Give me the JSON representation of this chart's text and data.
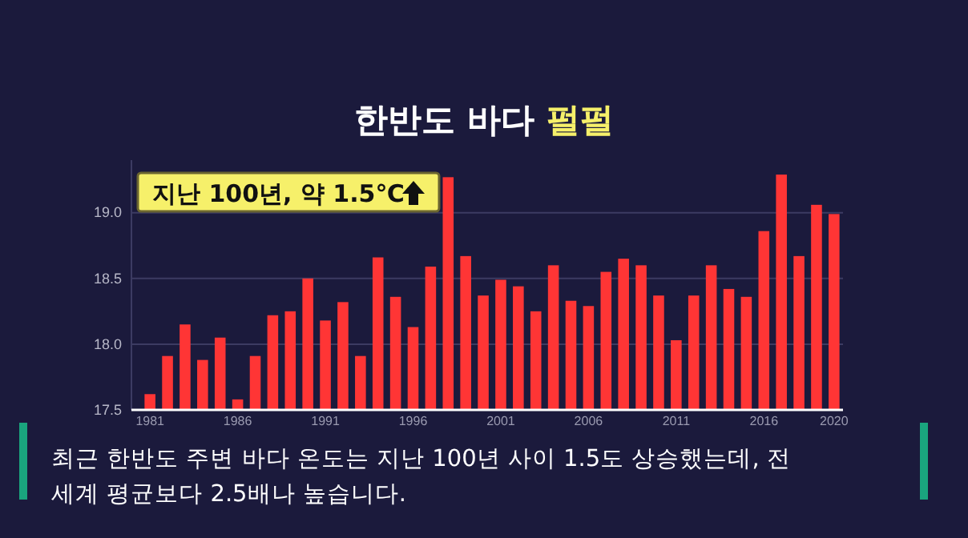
{
  "chart_data": {
    "type": "bar",
    "title": "한반도 바다 펄펄",
    "categories": [
      "1981",
      null,
      null,
      null,
      null,
      "1986",
      null,
      null,
      null,
      null,
      "1991",
      null,
      null,
      null,
      null,
      "1996",
      null,
      null,
      null,
      null,
      "2001",
      null,
      null,
      null,
      null,
      "2006",
      null,
      null,
      null,
      null,
      "2011",
      null,
      null,
      null,
      null,
      "2016",
      null,
      null,
      null,
      "2020"
    ],
    "values": [
      17.62,
      17.91,
      18.15,
      17.88,
      18.05,
      17.58,
      17.91,
      18.22,
      18.25,
      18.5,
      18.18,
      18.32,
      17.91,
      18.66,
      18.36,
      18.13,
      18.59,
      19.27,
      18.67,
      18.37,
      18.49,
      18.44,
      18.25,
      18.6,
      18.33,
      18.29,
      18.55,
      18.65,
      18.6,
      18.37,
      18.03,
      18.37,
      18.6,
      18.42,
      18.36,
      18.86,
      19.29,
      18.67,
      19.06,
      18.99
    ],
    "color": "#ff3535",
    "ylim": [
      17.5,
      19.4
    ],
    "yticks": [
      17.5,
      {
        "value": 18,
        "label": "18.0"
      },
      18.5,
      {
        "value": 19,
        "label": "19.0"
      }
    ],
    "grid": "y",
    "annotations": [
      "지난 100년, 약 1.5℃",
      "최근 한반도 주변 바다 온도는 지난 100년 사이 1.5도 상승했는데, 전 세계 평균보다 2.5배나 높습니다."
    ]
  }
}
